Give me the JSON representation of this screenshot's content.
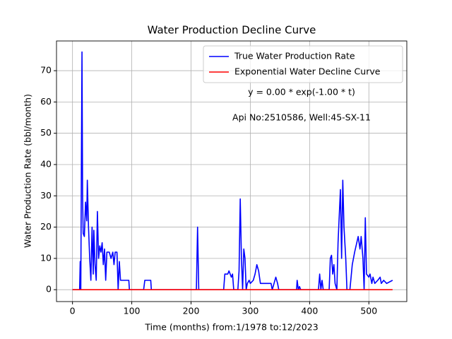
{
  "chart_data": {
    "type": "line",
    "title": "Water Production Decline Curve",
    "x_label": "Time (months) from:1/1978 to:12/2023",
    "y_label": "Water Production Rate (bbl/month)",
    "annotations": [
      "y = 0.00 * exp(-1.00 * t)",
      "Api No:2510586, Well:45-SX-11"
    ],
    "xlim": [
      -27,
      564
    ],
    "ylim": [
      -3.8,
      79.5
    ],
    "xticks": [
      0,
      100,
      200,
      300,
      400,
      500
    ],
    "yticks": [
      0,
      10,
      20,
      30,
      40,
      50,
      60,
      70
    ],
    "grid": true,
    "legend": "upper right",
    "series": [
      {
        "name": "True Water Production Rate",
        "color": "#0000ff",
        "x": [
          0,
          10,
          12,
          13,
          14,
          15,
          16,
          17,
          18,
          20,
          22,
          24,
          25,
          27,
          29,
          31,
          33,
          35,
          36,
          38,
          40,
          42,
          44,
          46,
          48,
          50,
          52,
          54,
          56,
          58,
          62,
          65,
          68,
          70,
          72,
          75,
          77,
          79,
          81,
          90,
          95,
          96,
          120,
          122,
          132,
          133,
          209,
          211,
          213,
          255,
          257,
          262,
          264,
          268,
          270,
          272,
          279,
          281,
          283,
          285,
          287,
          289,
          291,
          293,
          295,
          298,
          300,
          305,
          308,
          311,
          314,
          317,
          335,
          337,
          340,
          343,
          346,
          348,
          378,
          379,
          381,
          383,
          385,
          415,
          417,
          419,
          421,
          423,
          433,
          435,
          437,
          439,
          441,
          443,
          446,
          448,
          452,
          454,
          456,
          458,
          461,
          463,
          468,
          472,
          476,
          482,
          485,
          487,
          490,
          492,
          494,
          496,
          500,
          502,
          505,
          507,
          510,
          515,
          519,
          521,
          525,
          530,
          540
        ],
        "values": [
          0,
          0,
          0,
          9,
          0,
          40,
          76,
          30,
          18,
          17,
          28,
          22,
          35,
          20,
          10,
          3,
          20,
          5,
          19,
          8,
          3,
          25,
          10,
          14,
          12,
          15,
          8,
          13,
          3,
          12,
          12,
          10,
          12,
          8,
          12,
          12,
          0,
          9,
          3,
          3,
          3,
          0,
          0,
          3,
          3,
          0,
          0,
          20,
          0,
          0,
          5,
          5,
          6,
          4,
          5,
          0,
          0,
          6,
          29,
          10,
          0,
          13,
          10,
          0,
          2,
          3,
          2,
          3,
          5,
          8,
          6,
          2,
          2,
          0,
          2,
          4,
          2,
          0,
          0,
          3,
          0,
          1,
          0,
          0,
          5,
          0,
          3,
          0,
          0,
          10,
          11,
          5,
          8,
          2,
          0,
          15,
          32,
          10,
          35,
          20,
          10,
          0,
          0,
          8,
          12,
          17,
          13,
          17,
          10,
          0,
          23,
          5,
          4,
          5,
          2,
          4,
          2,
          3,
          4,
          2,
          3,
          2,
          3
        ]
      },
      {
        "name": "Exponential Water Decline Curve",
        "color": "#ff0000",
        "x": [
          0,
          540
        ],
        "values": [
          0,
          0
        ]
      }
    ]
  }
}
